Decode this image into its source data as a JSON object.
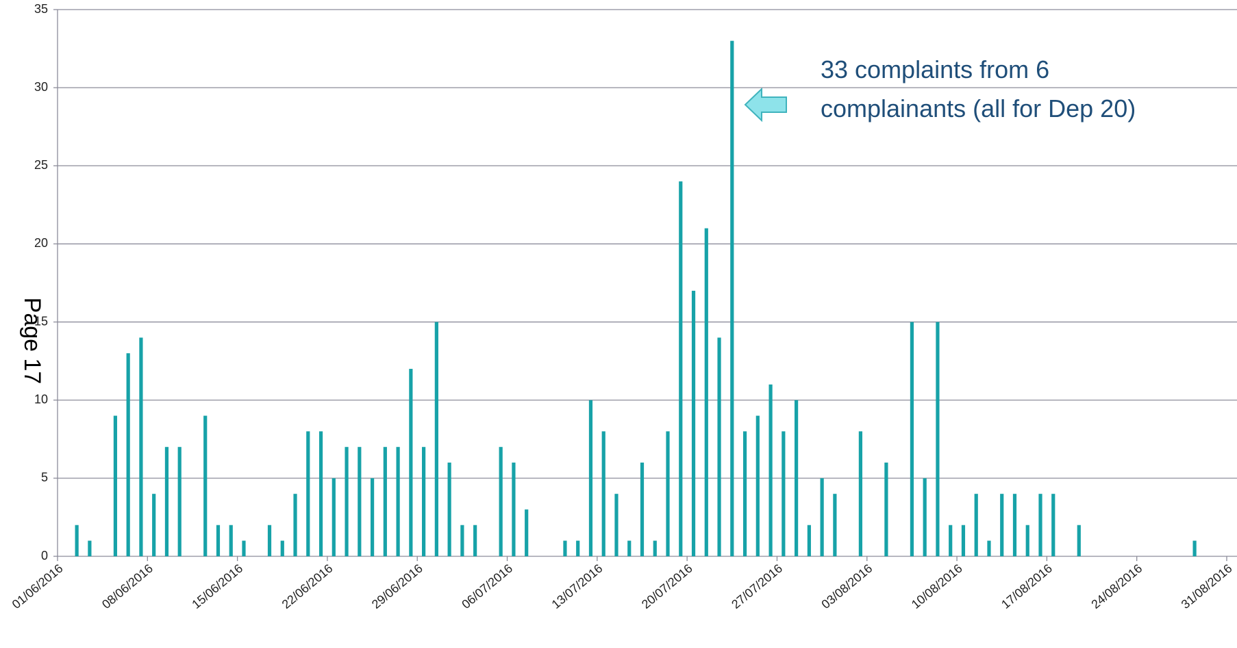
{
  "page_label": "Page 17",
  "chart_data": {
    "type": "bar",
    "color": "#17a2a8",
    "grid": true,
    "annotation": [
      "33 complaints  from 6",
      "complainants (all for Dep 20)"
    ],
    "x": [
      "02/06/2016",
      "03/06/2016",
      "05/06/2016",
      "06/06/2016",
      "07/06/2016",
      "08/06/2016",
      "09/06/2016",
      "10/06/2016",
      "12/06/2016",
      "13/06/2016",
      "14/06/2016",
      "15/06/2016",
      "17/06/2016",
      "18/06/2016",
      "19/06/2016",
      "20/06/2016",
      "21/06/2016",
      "22/06/2016",
      "23/06/2016",
      "24/06/2016",
      "25/06/2016",
      "26/06/2016",
      "27/06/2016",
      "28/06/2016",
      "29/06/2016",
      "30/06/2016",
      "01/07/2016",
      "02/07/2016",
      "03/07/2016",
      "05/07/2016",
      "06/07/2016",
      "07/07/2016",
      "10/07/2016",
      "11/07/2016",
      "12/07/2016",
      "13/07/2016",
      "14/07/2016",
      "15/07/2016",
      "16/07/2016",
      "17/07/2016",
      "18/07/2016",
      "19/07/2016",
      "20/07/2016",
      "21/07/2016",
      "22/07/2016",
      "23/07/2016",
      "24/07/2016",
      "25/07/2016",
      "26/07/2016",
      "27/07/2016",
      "28/07/2016",
      "29/07/2016",
      "30/07/2016",
      "31/07/2016",
      "02/08/2016",
      "04/08/2016",
      "06/08/2016",
      "07/08/2016",
      "08/08/2016",
      "09/08/2016",
      "10/08/2016",
      "11/08/2016",
      "12/08/2016",
      "13/08/2016",
      "14/08/2016",
      "15/08/2016",
      "16/08/2016",
      "17/08/2016",
      "19/08/2016",
      "28/08/2016"
    ],
    "values": [
      2,
      1,
      9,
      13,
      14,
      4,
      7,
      7,
      9,
      2,
      2,
      1,
      2,
      1,
      4,
      8,
      8,
      5,
      7,
      7,
      5,
      7,
      7,
      12,
      7,
      15,
      6,
      2,
      2,
      7,
      6,
      3,
      1,
      1,
      10,
      8,
      4,
      1,
      6,
      1,
      8,
      24,
      17,
      21,
      14,
      33,
      8,
      9,
      11,
      8,
      10,
      2,
      5,
      4,
      8,
      6,
      15,
      5,
      15,
      2,
      2,
      4,
      1,
      4,
      4,
      2,
      4,
      4,
      2,
      1
    ],
    "xlim": [
      "01/06/2016",
      "31/08/2016"
    ],
    "xticks": [
      "01/06/2016",
      "08/06/2016",
      "15/06/2016",
      "22/06/2016",
      "29/06/2016",
      "06/07/2016",
      "13/07/2016",
      "20/07/2016",
      "27/07/2016",
      "03/08/2016",
      "10/08/2016",
      "17/08/2016",
      "24/08/2016",
      "31/08/2016"
    ],
    "ylim": [
      0,
      35
    ],
    "yticks": [
      0,
      5,
      10,
      15,
      20,
      25,
      30,
      35
    ]
  }
}
